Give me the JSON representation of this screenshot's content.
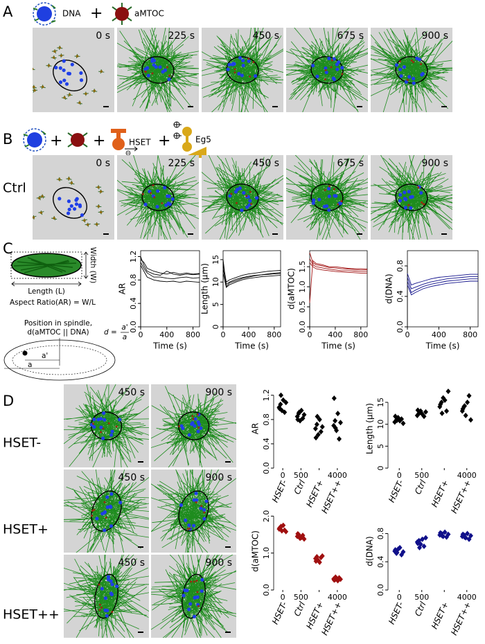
{
  "panels": {
    "A": {
      "label": "A",
      "legend": {
        "dna": "DNA",
        "plus": "+",
        "amtoc": "aMTOC"
      },
      "times": [
        "0 s",
        "225 s",
        "450 s",
        "675 s",
        "900 s"
      ]
    },
    "B": {
      "label": "B",
      "legend": {
        "plus1": "+",
        "plus2": "+",
        "hset": "HSET",
        "plus3": "+",
        "eg5": "Eg5"
      },
      "row_label": "Ctrl",
      "times": [
        "0 s",
        "225 s",
        "450 s",
        "675 s",
        "900 s"
      ]
    },
    "C": {
      "label": "C",
      "diagram": {
        "width": "Width (W)",
        "length": "Length (L)",
        "aspect_ratio": "Aspect Ratio(AR) = W/L",
        "position_1": "Position in spindle,",
        "position_2": "d(aMTOC || DNA)",
        "formula_lhs": "d =",
        "formula_num": "a'",
        "formula_den": "a",
        "a_prime": "a'",
        "a": "a"
      }
    },
    "D": {
      "label": "D",
      "rows": [
        {
          "label": "HSET-",
          "times": [
            "450 s",
            "900 s"
          ]
        },
        {
          "label": "HSET+",
          "times": [
            "450 s",
            "900 s"
          ]
        },
        {
          "label": "HSET++",
          "times": [
            "450 s",
            "900 s"
          ]
        }
      ]
    }
  },
  "chart_data": [
    {
      "type": "line",
      "ylabel": "AR",
      "xlabel": "Time (s)",
      "x": [
        0,
        50,
        100,
        200,
        300,
        400,
        500,
        600,
        700,
        800,
        900
      ],
      "series": [
        {
          "color": "#000000",
          "values": [
            1.15,
            1.1,
            1.0,
            0.95,
            0.92,
            0.9,
            0.93,
            0.9,
            0.92,
            0.9,
            0.91
          ]
        },
        {
          "color": "#000000",
          "values": [
            1.1,
            1.0,
            0.92,
            0.85,
            0.85,
            0.83,
            0.82,
            0.84,
            0.85,
            0.83,
            0.84
          ]
        },
        {
          "color": "#000000",
          "values": [
            1.05,
            0.95,
            0.85,
            0.8,
            0.78,
            0.77,
            0.78,
            0.76,
            0.78,
            0.77,
            0.76
          ]
        },
        {
          "color": "#000000",
          "values": [
            1.2,
            1.05,
            0.95,
            0.9,
            0.88,
            0.95,
            0.9,
            0.88,
            0.9,
            0.89,
            0.9
          ]
        }
      ],
      "xlim": [
        0,
        900
      ],
      "xticks": [
        0,
        400,
        800
      ],
      "ylim": [
        0,
        1.3
      ],
      "yticks": [
        {
          "value": 0,
          "label": "0.0"
        },
        0.4,
        0.8,
        1.2
      ]
    },
    {
      "type": "line",
      "ylabel": "Length (μm)",
      "xlabel": "Time (s)",
      "x": [
        0,
        50,
        100,
        200,
        300,
        400,
        500,
        600,
        700,
        800,
        900
      ],
      "series": [
        {
          "color": "#000000",
          "values": [
            15,
            9,
            9.8,
            10.3,
            10.8,
            11.1,
            11.4,
            11.6,
            11.8,
            12,
            12.1
          ]
        },
        {
          "color": "#000000",
          "values": [
            13,
            9.5,
            10,
            10.6,
            11,
            11.3,
            11.5,
            11.6,
            11.7,
            11.8,
            11.9
          ]
        },
        {
          "color": "#000000",
          "values": [
            12,
            8.8,
            9.4,
            10,
            10.5,
            10.8,
            11,
            11.2,
            11.3,
            11.4,
            11.5
          ]
        },
        {
          "color": "#000000",
          "values": [
            14,
            10,
            10.5,
            11,
            11.5,
            11.8,
            12,
            12.2,
            12.4,
            12.5,
            12.6
          ]
        }
      ],
      "xlim": [
        0,
        900
      ],
      "xticks": [
        0,
        400,
        800
      ],
      "ylim": [
        0,
        17
      ],
      "yticks": [
        0,
        5,
        10,
        15
      ]
    },
    {
      "type": "line",
      "ylabel": "d(aMTOC)",
      "xlabel": "Time (s)",
      "x": [
        0,
        50,
        100,
        200,
        300,
        400,
        500,
        600,
        700,
        800,
        900
      ],
      "series": [
        {
          "color": "#a01010",
          "values": [
            1.85,
            1.6,
            1.55,
            1.52,
            1.48,
            1.47,
            1.45,
            1.44,
            1.43,
            1.42,
            1.42
          ]
        },
        {
          "color": "#a01010",
          "values": [
            1.7,
            1.55,
            1.5,
            1.47,
            1.44,
            1.42,
            1.4,
            1.4,
            1.39,
            1.38,
            1.38
          ]
        },
        {
          "color": "#a01010",
          "values": [
            1.6,
            1.5,
            1.45,
            1.42,
            1.4,
            1.38,
            1.37,
            1.36,
            1.35,
            1.34,
            1.34
          ]
        },
        {
          "color": "#a01010",
          "values": [
            0.6,
            1.65,
            1.58,
            1.55,
            1.5,
            1.5,
            1.48,
            1.46,
            1.45,
            1.45,
            1.44
          ]
        }
      ],
      "xlim": [
        0,
        900
      ],
      "xticks": [
        0,
        400,
        800
      ],
      "ylim": [
        0,
        1.9
      ],
      "yticks": [
        {
          "value": 0,
          "label": "0.0"
        },
        0.5,
        {
          "value": 1,
          "label": "1.0"
        },
        1.5
      ]
    },
    {
      "type": "line",
      "ylabel": "d(DNA)",
      "xlabel": "Time (s)",
      "x": [
        0,
        50,
        100,
        200,
        300,
        400,
        500,
        600,
        700,
        800,
        900
      ],
      "series": [
        {
          "color": "#10108a",
          "values": [
            0.65,
            0.5,
            0.52,
            0.56,
            0.59,
            0.61,
            0.63,
            0.64,
            0.65,
            0.66,
            0.66
          ]
        },
        {
          "color": "#10108a",
          "values": [
            0.6,
            0.45,
            0.48,
            0.53,
            0.56,
            0.58,
            0.6,
            0.61,
            0.62,
            0.63,
            0.63
          ]
        },
        {
          "color": "#10108a",
          "values": [
            0.55,
            0.42,
            0.45,
            0.5,
            0.53,
            0.55,
            0.57,
            0.58,
            0.59,
            0.6,
            0.6
          ]
        },
        {
          "color": "#10108a",
          "values": [
            0.7,
            0.55,
            0.57,
            0.6,
            0.63,
            0.65,
            0.66,
            0.67,
            0.68,
            0.69,
            0.69
          ]
        }
      ],
      "xlim": [
        0,
        900
      ],
      "xticks": [
        0,
        400,
        800
      ],
      "ylim": [
        0,
        1.0
      ],
      "yticks": [
        {
          "value": 0,
          "label": "0.0"
        },
        0.4,
        0.8
      ]
    },
    {
      "type": "strip",
      "ylabel": "AR",
      "categories": [
        "HSET-",
        "Ctrl",
        "HSET+",
        "HSET++"
      ],
      "category_numbers": [
        "0",
        "500",
        null,
        "4000"
      ],
      "color": "#000000",
      "values": [
        [
          1.0,
          1.05,
          0.95,
          1.12,
          0.92,
          1.08,
          0.98,
          1.2
        ],
        [
          0.85,
          0.9,
          0.78,
          0.95,
          0.82,
          0.88,
          0.8,
          0.92
        ],
        [
          0.65,
          0.72,
          0.55,
          0.8,
          0.6,
          0.68,
          0.5,
          0.85
        ],
        [
          0.7,
          0.78,
          0.62,
          0.9,
          0.48,
          0.75,
          1.15,
          0.66
        ]
      ],
      "ylim": [
        0,
        1.3
      ],
      "yticks": [
        {
          "value": 0,
          "label": "0.0"
        },
        0.4,
        0.8,
        1.2
      ]
    },
    {
      "type": "strip",
      "ylabel": "Length (μm)",
      "categories": [
        "HSET-",
        "Ctrl",
        "HSET+",
        "HSET++"
      ],
      "category_numbers": [
        "0",
        "500",
        null,
        "4000"
      ],
      "color": "#000000",
      "values": [
        [
          10.5,
          11,
          11.5,
          10.8,
          11.2,
          10.2,
          11.8,
          10.9
        ],
        [
          12,
          12.5,
          13,
          12.3,
          11.8,
          12.8,
          13.2,
          12.6
        ],
        [
          14,
          15,
          16,
          15.5,
          13,
          17.5,
          14.5,
          12.5
        ],
        [
          13,
          14,
          12,
          15,
          16.5,
          11,
          13.5,
          14.2
        ]
      ],
      "ylim": [
        0,
        18
      ],
      "yticks": [
        0,
        5,
        10,
        15
      ]
    },
    {
      "type": "strip",
      "ylabel": "d(aMTOC)",
      "categories": [
        "HSET-",
        "Ctrl",
        "HSET+",
        "HSET++"
      ],
      "category_numbers": [
        "0",
        "500",
        null,
        "4000"
      ],
      "color": "#a01010",
      "values": [
        [
          1.65,
          1.7,
          1.6,
          1.75,
          1.62,
          1.58,
          1.68,
          1.72
        ],
        [
          1.45,
          1.5,
          1.4,
          1.42,
          1.48,
          1.38,
          1.52,
          1.44
        ],
        [
          0.85,
          0.9,
          0.8,
          0.75,
          0.88,
          0.92,
          0.78,
          0.82
        ],
        [
          0.3,
          0.28,
          0.32,
          0.25,
          0.33,
          0.29,
          0.27,
          0.35
        ]
      ],
      "ylim": [
        0,
        2.1
      ],
      "yticks": [
        {
          "value": 0,
          "label": "0.0"
        },
        {
          "value": 1,
          "label": "1.0"
        },
        {
          "value": 2,
          "label": "2.0"
        }
      ]
    },
    {
      "type": "strip",
      "ylabel": "d(DNA)",
      "categories": [
        "HSET-",
        "Ctrl",
        "HSET+",
        "HSET++"
      ],
      "category_numbers": [
        "0",
        "500",
        null,
        "4000"
      ],
      "color": "#10108a",
      "values": [
        [
          0.55,
          0.52,
          0.58,
          0.6,
          0.5,
          0.54,
          0.57,
          0.53
        ],
        [
          0.68,
          0.7,
          0.65,
          0.72,
          0.62,
          0.74,
          0.66,
          0.6
        ],
        [
          0.78,
          0.8,
          0.76,
          0.82,
          0.75,
          0.79,
          0.81,
          0.77
        ],
        [
          0.76,
          0.78,
          0.74,
          0.8,
          0.72,
          0.77,
          0.79,
          0.75
        ]
      ],
      "ylim": [
        0,
        1.1
      ],
      "yticks": [
        {
          "value": 0,
          "label": "0.0"
        },
        0.4,
        0.8
      ]
    }
  ]
}
